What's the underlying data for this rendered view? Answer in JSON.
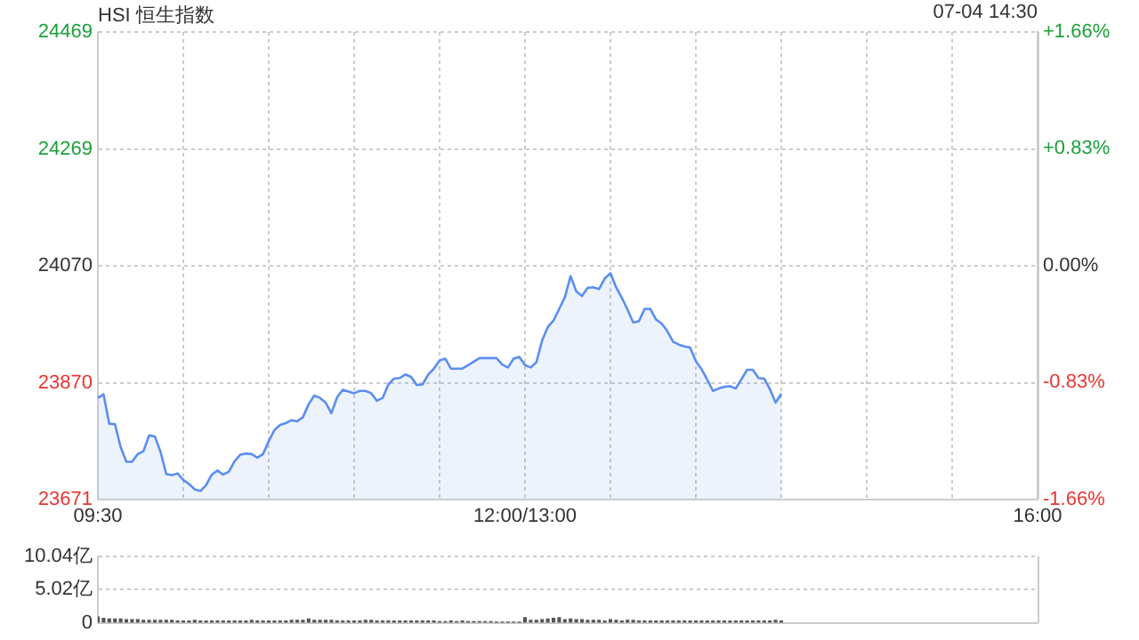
{
  "chart_data": [
    {
      "type": "area",
      "title": "HSI 恒生指数",
      "subtitle": "07-04 14:30",
      "color": "#5a8ef0",
      "grid": true,
      "categories": [
        "09:30",
        null,
        null,
        null,
        null,
        null,
        null,
        null,
        null,
        null,
        null,
        null,
        null,
        null,
        null,
        null,
        null,
        null,
        null,
        null,
        null,
        null,
        null,
        null,
        null,
        null,
        null,
        null,
        null,
        null,
        null,
        null,
        null,
        null,
        null,
        null,
        null,
        null,
        null,
        null,
        null,
        null,
        null,
        null,
        null,
        null,
        null,
        null,
        null,
        null,
        null,
        null,
        null,
        null,
        null,
        null,
        null,
        null,
        null,
        null,
        null,
        null,
        null,
        null,
        null,
        null,
        null,
        null,
        null,
        null,
        null,
        null,
        null,
        null,
        null,
        "12:00/13:00",
        null,
        null,
        null,
        null,
        null,
        null,
        null,
        null,
        null,
        null,
        null,
        null,
        null,
        null,
        null,
        null,
        null,
        null,
        null,
        null,
        null,
        null,
        null,
        null,
        null,
        null,
        null,
        null,
        null,
        null,
        null,
        null,
        null,
        null,
        null,
        null,
        null,
        null,
        null,
        null,
        null,
        null,
        null,
        null,
        null,
        null,
        null,
        null,
        null,
        null,
        null,
        null,
        null,
        null,
        null,
        null,
        null,
        null,
        null,
        null,
        null,
        null,
        null,
        null,
        null,
        null,
        null,
        null,
        null,
        null,
        null,
        null,
        null,
        null,
        null,
        null,
        null,
        null,
        null,
        null,
        null,
        null,
        null,
        null,
        null,
        null,
        null,
        null,
        null,
        "16:00"
      ],
      "values": [
        23844,
        23850,
        23800,
        23799,
        23760,
        23735,
        23735,
        23748,
        23753,
        23780,
        23778,
        23752,
        23714,
        23712,
        23715,
        23704,
        23697,
        23688,
        23685,
        23695,
        23713,
        23720,
        23713,
        23718,
        23736,
        23747,
        23749,
        23748,
        23742,
        23748,
        23770,
        23789,
        23798,
        23801,
        23806,
        23804,
        23811,
        23833,
        23848,
        23844,
        23836,
        23818,
        23845,
        23858,
        23855,
        23852,
        23856,
        23856,
        23852,
        23839,
        23844,
        23867,
        23877,
        23878,
        23884,
        23880,
        23866,
        23867,
        23884,
        23894,
        23908,
        23911,
        23894,
        23894,
        23894,
        23900,
        23906,
        23912,
        23912,
        23912,
        23912,
        23901,
        23896,
        23911,
        23914,
        23900,
        23896,
        23905,
        23942,
        23965,
        23976,
        23996,
        24016,
        24052,
        24026,
        24018,
        24032,
        24033,
        24030,
        24048,
        24057,
        24033,
        24015,
        23995,
        23973,
        23975,
        23996,
        23996,
        23978,
        23971,
        23958,
        23940,
        23935,
        23932,
        23930,
        23907,
        23893,
        23875,
        23856,
        23860,
        23863,
        23864,
        23860,
        23876,
        23892,
        23892,
        23878,
        23877,
        23859,
        23836,
        23851,
        null,
        null,
        null,
        null,
        null,
        null,
        null,
        null,
        null,
        null,
        null,
        null,
        null,
        null,
        null,
        null,
        null,
        null,
        null,
        null,
        null,
        null,
        null,
        null,
        null,
        null,
        null,
        null,
        null,
        null,
        null,
        null,
        null,
        null,
        null,
        null,
        null,
        null,
        null,
        null,
        null,
        null,
        null,
        null,
        null
      ],
      "ylim": [
        23671,
        24469
      ],
      "yticks": [
        23671,
        23870,
        24070,
        24269,
        24469
      ],
      "y2lim": [
        -1.66,
        1.66
      ],
      "y2ticks": [
        {
          "value": -1.66,
          "label": "-1.66%"
        },
        {
          "value": -0.83,
          "label": "-0.83%"
        },
        {
          "value": 0,
          "label": "0.00%"
        },
        {
          "value": 0.83,
          "label": "+0.83%"
        },
        {
          "value": 1.66,
          "label": "+1.66%"
        }
      ]
    },
    {
      "type": "bar",
      "color": "#555555",
      "grid": "y",
      "tick_labels": "y",
      "categories": [
        null,
        null,
        null,
        null,
        null,
        null,
        null,
        null,
        null,
        null,
        null,
        null,
        null,
        null,
        null,
        null,
        null,
        null,
        null,
        null,
        null,
        null,
        null,
        null,
        null,
        null,
        null,
        null,
        null,
        null,
        null,
        null,
        null,
        null,
        null,
        null,
        null,
        null,
        null,
        null,
        null,
        null,
        null,
        null,
        null,
        null,
        null,
        null,
        null,
        null,
        null,
        null,
        null,
        null,
        null,
        null,
        null,
        null,
        null,
        null,
        null,
        null,
        null,
        null,
        null,
        null,
        null,
        null,
        null,
        null,
        null,
        null,
        null,
        null,
        null,
        null,
        null,
        null,
        null,
        null,
        null,
        null,
        null,
        null,
        null,
        null,
        null,
        null,
        null,
        null,
        null,
        null,
        null,
        null,
        null,
        null,
        null,
        null,
        null,
        null,
        null,
        null,
        null,
        null,
        null,
        null,
        null,
        null,
        null,
        null,
        null,
        null,
        null,
        null,
        null,
        null,
        null,
        null,
        null,
        null,
        null,
        null,
        null,
        null,
        null,
        null,
        null,
        null,
        null,
        null,
        null,
        null,
        null,
        null,
        null,
        null,
        null,
        null,
        null,
        null,
        null,
        null,
        null,
        null,
        null,
        null,
        null,
        null,
        null,
        null,
        null,
        null,
        null,
        null,
        null,
        null,
        null,
        null,
        null,
        null,
        null,
        null,
        null,
        null,
        null,
        null
      ],
      "values": [
        0.9,
        0.7,
        0.6,
        0.6,
        0.6,
        0.5,
        0.5,
        0.5,
        0.4,
        0.4,
        0.4,
        0.4,
        0.4,
        0.4,
        0.3,
        0.3,
        0.3,
        0.4,
        0.3,
        0.3,
        0.3,
        0.3,
        0.3,
        0.3,
        0.3,
        0.3,
        0.3,
        0.4,
        0.3,
        0.3,
        0.3,
        0.3,
        0.3,
        0.3,
        0.4,
        0.4,
        0.4,
        0.6,
        0.4,
        0.4,
        0.4,
        0.4,
        0.3,
        0.3,
        0.3,
        0.3,
        0.3,
        0.4,
        0.4,
        0.3,
        0.3,
        0.3,
        0.3,
        0.3,
        0.3,
        0.3,
        0.3,
        0.3,
        0.3,
        0.3,
        0.2,
        0.2,
        0.3,
        0.2,
        0.3,
        0.2,
        0.2,
        0.2,
        0.2,
        0.2,
        0.1,
        0.1,
        0.1,
        0.1,
        0.1,
        0.8,
        0.4,
        0.4,
        0.5,
        0.6,
        0.7,
        0.8,
        0.5,
        0.6,
        0.5,
        0.5,
        0.4,
        0.4,
        0.4,
        0.3,
        0.5,
        0.4,
        0.3,
        0.4,
        0.4,
        0.3,
        0.3,
        0.3,
        0.3,
        0.3,
        0.3,
        0.3,
        0.3,
        0.3,
        0.3,
        0.3,
        0.3,
        0.3,
        0.3,
        0.3,
        0.3,
        0.3,
        0.3,
        0.3,
        0.3,
        0.3,
        0.3,
        0.3,
        0.3,
        0.4,
        0.3,
        null,
        null,
        null,
        null,
        null,
        null,
        null,
        null,
        null,
        null,
        null,
        null,
        null,
        null,
        null,
        null,
        null,
        null,
        null,
        null,
        null,
        null,
        null,
        null,
        null,
        null,
        null,
        null,
        null,
        null,
        null,
        null,
        null,
        null,
        null,
        null,
        null,
        null,
        null,
        null,
        null,
        null,
        null,
        null,
        null
      ],
      "ylim": [
        0,
        10.04
      ],
      "yticks": [
        {
          "value": 0,
          "label": "0"
        },
        {
          "value": 5.02,
          "label": "5.02亿"
        },
        {
          "value": 10.04,
          "label": "10.04亿"
        }
      ]
    }
  ]
}
